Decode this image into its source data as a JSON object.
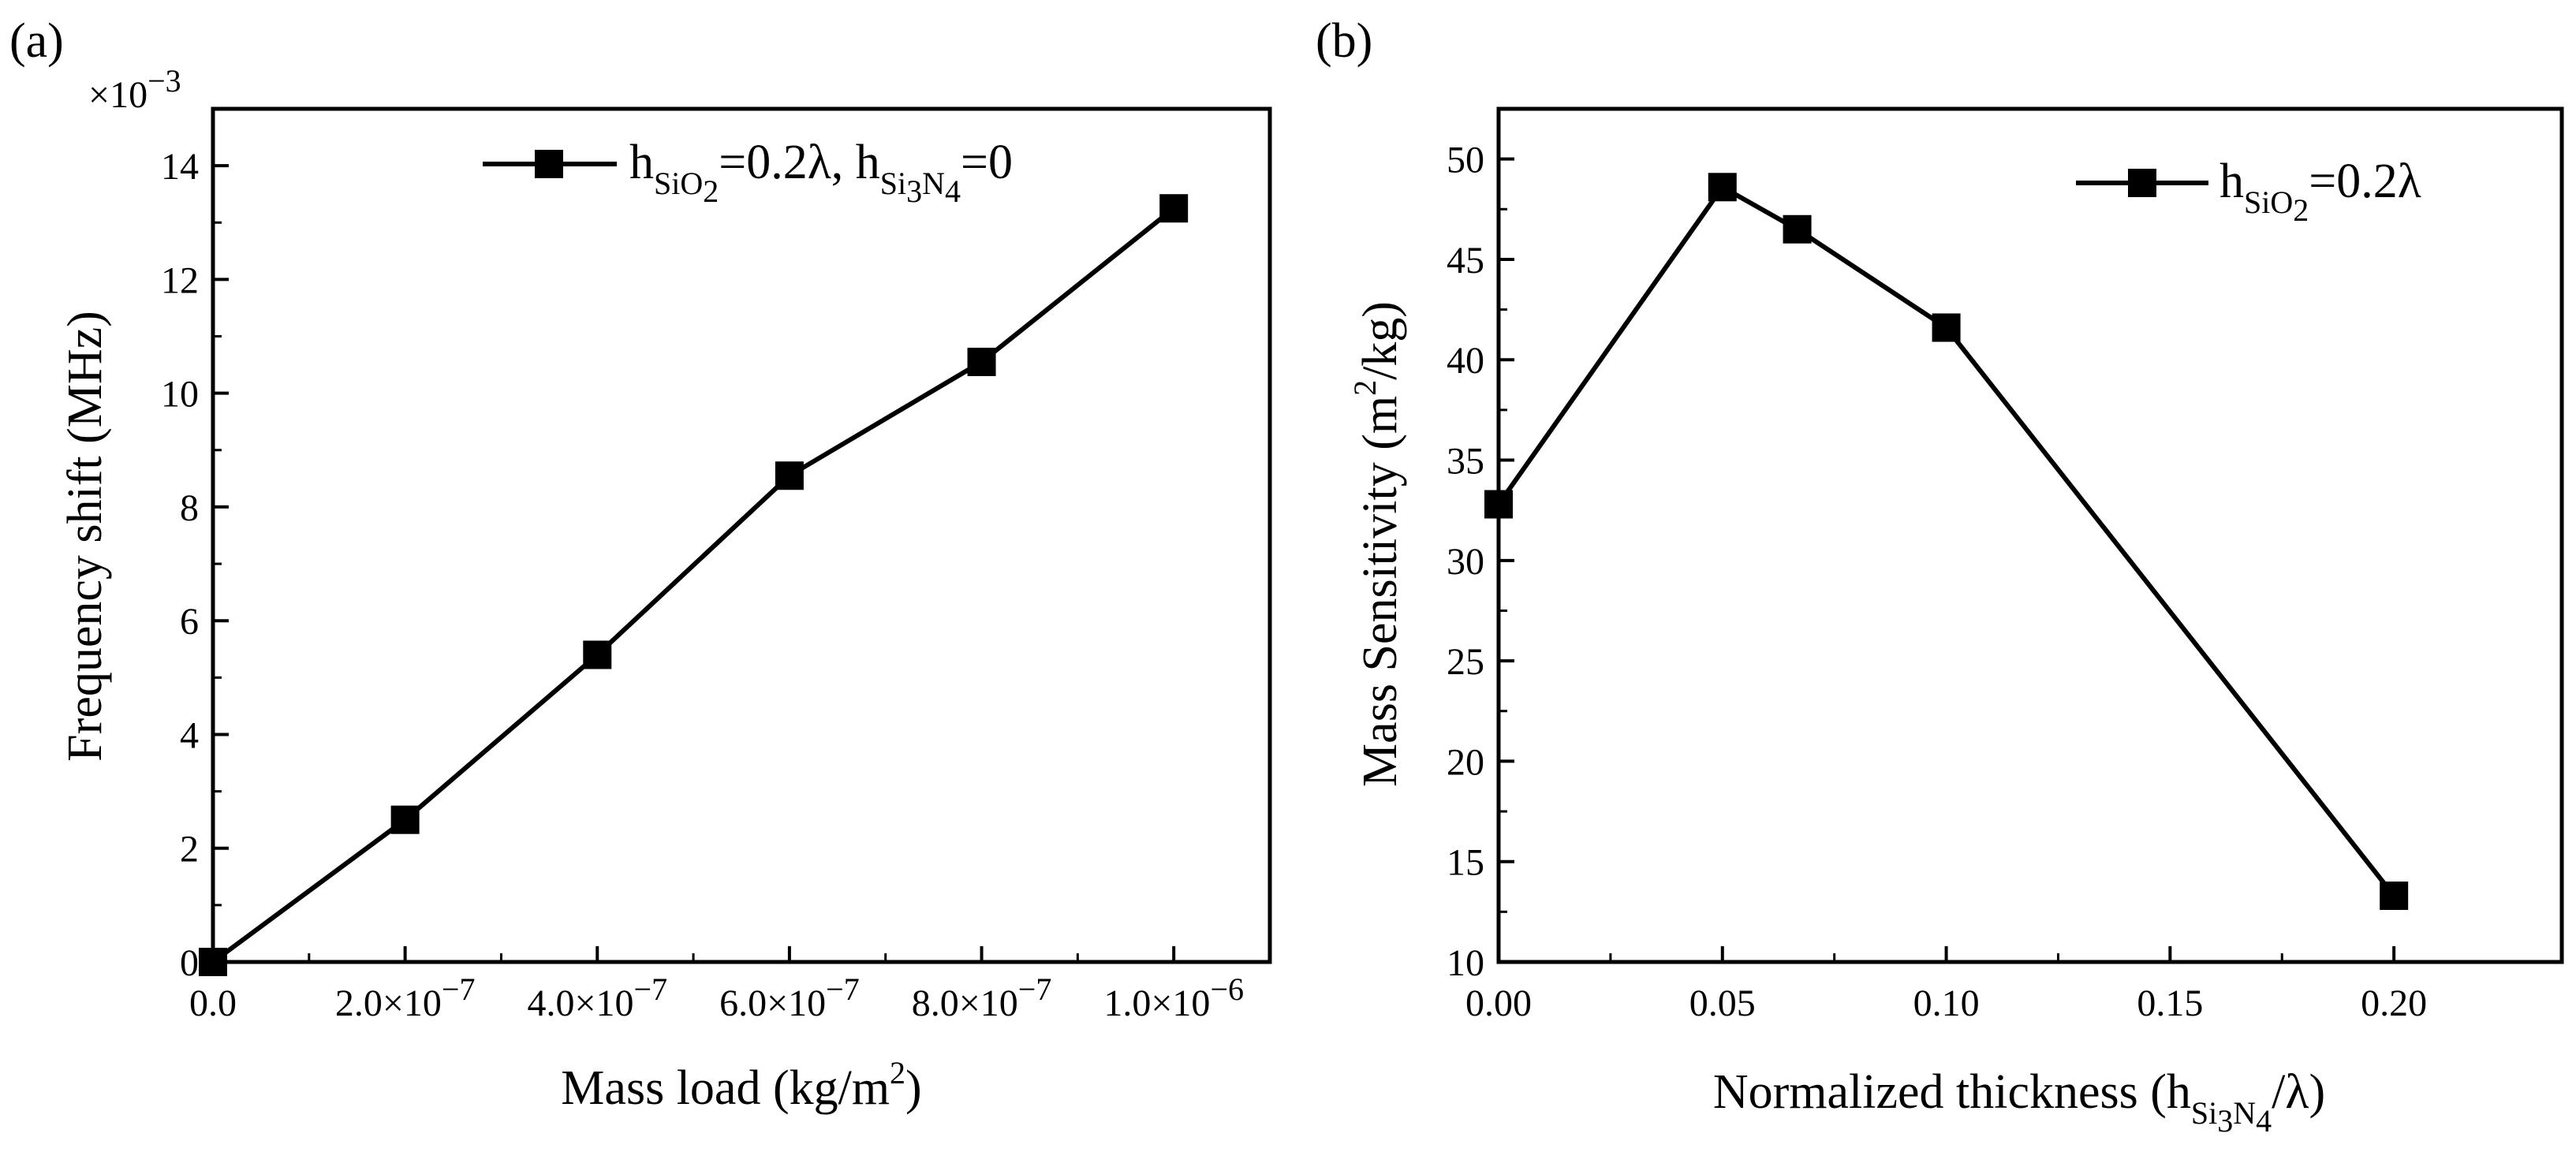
{
  "chart_data": [
    {
      "panel": "(a)",
      "type": "line",
      "title": "",
      "xlabel": "Mass load (kg/m²)",
      "xlabel_parts": {
        "main": "Mass load (kg/m",
        "sup": "2",
        "end": ")"
      },
      "ylabel": "Frequency shift (MHz)",
      "y_multiplier": "×10⁻³",
      "y_multiplier_parts": {
        "main": "×10",
        "sup": "−3"
      },
      "xlim": [
        0,
        1.1e-06
      ],
      "ylim": [
        0,
        15
      ],
      "x_ticks": [
        {
          "value": 0,
          "label": "0.0",
          "exp": ""
        },
        {
          "value": 2e-07,
          "label": "2.0×10",
          "exp": "−7"
        },
        {
          "value": 4e-07,
          "label": "4.0×10",
          "exp": "−7"
        },
        {
          "value": 6e-07,
          "label": "6.0×10",
          "exp": "−7"
        },
        {
          "value": 8e-07,
          "label": "8.0×10",
          "exp": "−7"
        },
        {
          "value": 1e-06,
          "label": "1.0×10",
          "exp": "−6"
        }
      ],
      "y_ticks": [
        0,
        2,
        4,
        6,
        8,
        10,
        12,
        14
      ],
      "legend_position": "top-right",
      "series": [
        {
          "name": "hSiO2=0.2λ, hSi3N4=0",
          "marker": "square",
          "x": [
            0,
            2e-07,
            4e-07,
            6e-07,
            8e-07,
            1e-06
          ],
          "y": [
            0.0,
            2.5,
            5.4,
            8.55,
            10.55,
            13.25
          ]
        }
      ]
    },
    {
      "panel": "(b)",
      "type": "line",
      "title": "",
      "xlabel": "Normalized thickness (hSi3N4/λ)",
      "ylabel": "Mass Sensitivity (m²/kg)",
      "ylabel_parts": {
        "main": "Mass Sensitivity (m",
        "sup": "2",
        "end": "/kg)"
      },
      "xlim": [
        0,
        0.2375
      ],
      "ylim": [
        10,
        52.5
      ],
      "x_ticks": [
        {
          "value": 0,
          "label": "0.00"
        },
        {
          "value": 0.05,
          "label": "0.05"
        },
        {
          "value": 0.1,
          "label": "0.10"
        },
        {
          "value": 0.15,
          "label": "0.15"
        },
        {
          "value": 0.2,
          "label": "0.20"
        }
      ],
      "y_ticks": [
        10,
        15,
        20,
        25,
        30,
        35,
        40,
        45,
        50
      ],
      "legend_position": "top-right",
      "series": [
        {
          "name": "hSiO2=0.2λ",
          "marker": "square",
          "x": [
            0,
            0.05,
            0.0667,
            0.1,
            0.2
          ],
          "y": [
            32.8,
            48.6,
            46.5,
            41.6,
            13.3
          ]
        }
      ]
    }
  ],
  "text": {
    "h": "h",
    "sio2": "SiO",
    "si": "Si",
    "n": "N",
    "two": "2",
    "three": "3",
    "four": "4",
    "eq02": "=0.2λ",
    "eq02comma": "=0.2λ, ",
    "eq0": "=0",
    "norm_main": "Normalized thickness (h",
    "norm_end": "/λ)"
  }
}
